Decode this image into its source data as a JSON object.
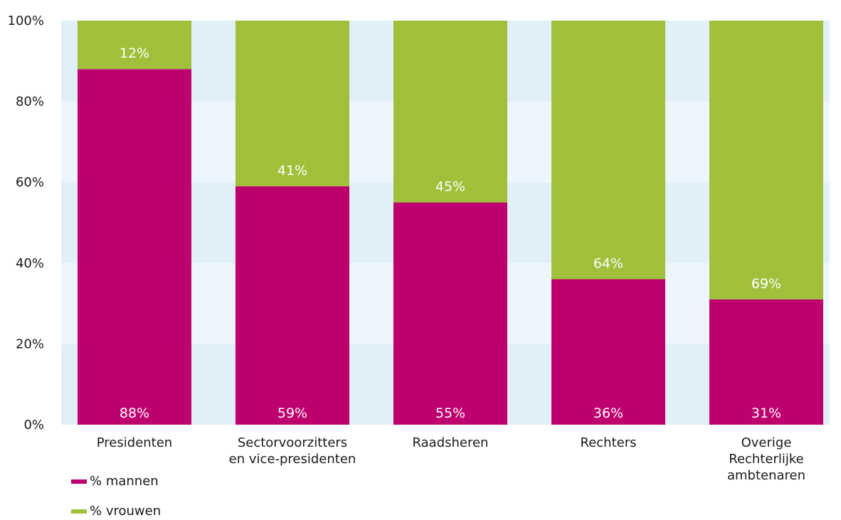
{
  "chart_data": {
    "type": "bar",
    "stacked": true,
    "categories": [
      [
        "Presidenten"
      ],
      [
        "Sectorvoorzitters",
        "en vice-presidenten"
      ],
      [
        "Raadsheren"
      ],
      [
        "Rechters"
      ],
      [
        "Overige",
        "Rechterlijke",
        "ambtenaren"
      ]
    ],
    "series": [
      {
        "name": "% mannen",
        "color": "#be006e",
        "values": [
          88,
          59,
          55,
          36,
          31
        ],
        "labels": [
          "88%",
          "59%",
          "55%",
          "36%",
          "31%"
        ]
      },
      {
        "name": "% vrouwen",
        "color": "#a0c03c",
        "values": [
          12,
          41,
          45,
          64,
          69
        ],
        "labels": [
          "12%",
          "41%",
          "45%",
          "64%",
          "69%"
        ]
      }
    ],
    "ylim": [
      0,
      100
    ],
    "yticks": [
      0,
      20,
      40,
      60,
      80,
      100
    ],
    "ytick_labels": [
      "0%",
      "20%",
      "40%",
      "60%",
      "80%",
      "100%"
    ],
    "legend_position": "bottom-left",
    "band_colors": [
      "#e0eff8",
      "#eef6fd"
    ]
  }
}
